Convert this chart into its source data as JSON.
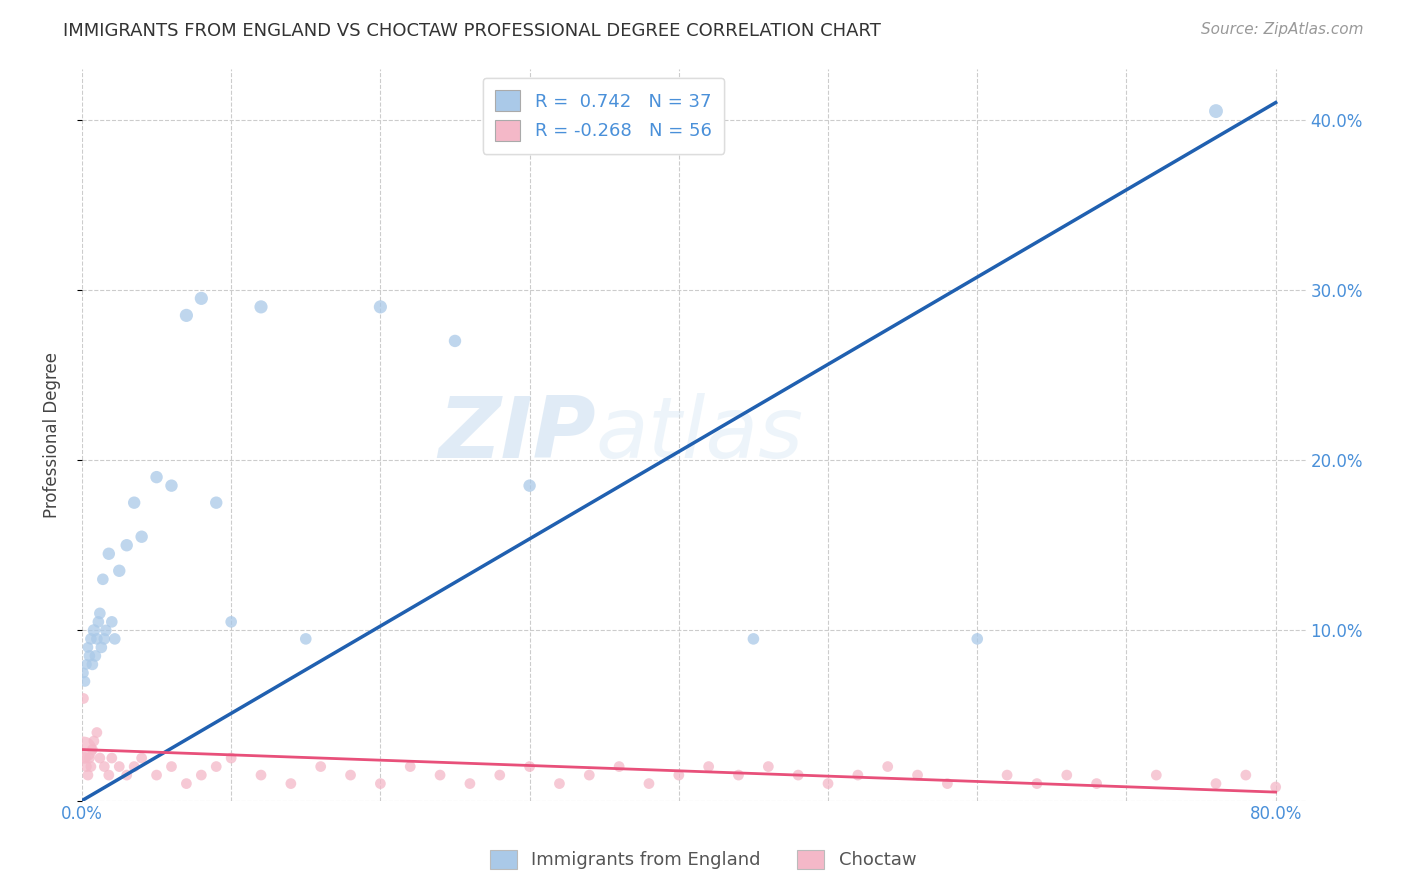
{
  "title": "IMMIGRANTS FROM ENGLAND VS CHOCTAW PROFESSIONAL DEGREE CORRELATION CHART",
  "source": "Source: ZipAtlas.com",
  "ylabel": "Professional Degree",
  "legend_blue_r": "0.742",
  "legend_blue_n": "37",
  "legend_pink_r": "-0.268",
  "legend_pink_n": "56",
  "legend_label_blue": "Immigrants from England",
  "legend_label_pink": "Choctaw",
  "blue_color": "#aac9e8",
  "pink_color": "#f4b8c8",
  "blue_line_color": "#2060b0",
  "pink_line_color": "#e8507a",
  "watermark_zip": "ZIP",
  "watermark_atlas": "atlas",
  "blue_scatter_x": [
    0.001,
    0.002,
    0.003,
    0.004,
    0.005,
    0.006,
    0.007,
    0.008,
    0.009,
    0.01,
    0.011,
    0.012,
    0.013,
    0.014,
    0.015,
    0.016,
    0.018,
    0.02,
    0.022,
    0.025,
    0.03,
    0.035,
    0.04,
    0.05,
    0.06,
    0.07,
    0.08,
    0.09,
    0.1,
    0.12,
    0.15,
    0.2,
    0.25,
    0.3,
    0.45,
    0.6,
    0.76
  ],
  "blue_scatter_y": [
    0.075,
    0.07,
    0.08,
    0.09,
    0.085,
    0.095,
    0.08,
    0.1,
    0.085,
    0.095,
    0.105,
    0.11,
    0.09,
    0.13,
    0.095,
    0.1,
    0.145,
    0.105,
    0.095,
    0.135,
    0.15,
    0.175,
    0.155,
    0.19,
    0.185,
    0.285,
    0.295,
    0.175,
    0.105,
    0.29,
    0.095,
    0.29,
    0.27,
    0.185,
    0.095,
    0.095,
    0.405
  ],
  "blue_scatter_size": [
    60,
    60,
    60,
    60,
    70,
    70,
    70,
    80,
    70,
    70,
    70,
    70,
    70,
    70,
    70,
    70,
    80,
    70,
    70,
    80,
    80,
    80,
    80,
    80,
    80,
    90,
    90,
    80,
    70,
    90,
    70,
    90,
    80,
    80,
    70,
    70,
    100
  ],
  "pink_scatter_x": [
    0.001,
    0.002,
    0.003,
    0.004,
    0.005,
    0.006,
    0.007,
    0.008,
    0.01,
    0.012,
    0.015,
    0.018,
    0.02,
    0.025,
    0.03,
    0.035,
    0.04,
    0.05,
    0.06,
    0.07,
    0.08,
    0.09,
    0.1,
    0.12,
    0.14,
    0.16,
    0.18,
    0.2,
    0.22,
    0.24,
    0.26,
    0.28,
    0.3,
    0.32,
    0.34,
    0.36,
    0.38,
    0.4,
    0.42,
    0.44,
    0.46,
    0.48,
    0.5,
    0.52,
    0.54,
    0.56,
    0.58,
    0.62,
    0.64,
    0.66,
    0.68,
    0.72,
    0.76,
    0.78,
    0.8,
    0.001
  ],
  "pink_scatter_y": [
    0.03,
    0.025,
    0.02,
    0.015,
    0.025,
    0.02,
    0.03,
    0.035,
    0.04,
    0.025,
    0.02,
    0.015,
    0.025,
    0.02,
    0.015,
    0.02,
    0.025,
    0.015,
    0.02,
    0.01,
    0.015,
    0.02,
    0.025,
    0.015,
    0.01,
    0.02,
    0.015,
    0.01,
    0.02,
    0.015,
    0.01,
    0.015,
    0.02,
    0.01,
    0.015,
    0.02,
    0.01,
    0.015,
    0.02,
    0.015,
    0.02,
    0.015,
    0.01,
    0.015,
    0.02,
    0.015,
    0.01,
    0.015,
    0.01,
    0.015,
    0.01,
    0.015,
    0.01,
    0.015,
    0.008,
    0.06
  ],
  "pink_scatter_size": [
    350,
    70,
    60,
    60,
    60,
    60,
    60,
    60,
    60,
    60,
    60,
    60,
    60,
    60,
    60,
    60,
    60,
    60,
    60,
    60,
    60,
    60,
    60,
    60,
    60,
    60,
    60,
    60,
    60,
    60,
    60,
    60,
    60,
    60,
    60,
    60,
    60,
    60,
    60,
    60,
    60,
    60,
    60,
    60,
    60,
    60,
    60,
    60,
    60,
    60,
    60,
    60,
    60,
    60,
    60,
    60
  ],
  "blue_line_x": [
    0.0,
    0.8
  ],
  "blue_line_y": [
    0.0,
    0.41
  ],
  "pink_line_x": [
    0.0,
    0.8
  ],
  "pink_line_y": [
    0.03,
    0.005
  ],
  "xlim": [
    0.0,
    0.82
  ],
  "ylim": [
    0.0,
    0.43
  ],
  "yticks": [
    0.0,
    0.1,
    0.2,
    0.3,
    0.4
  ],
  "ytick_labels_right": [
    "",
    "10.0%",
    "20.0%",
    "30.0%",
    "40.0%"
  ],
  "xticks": [
    0.0,
    0.1,
    0.2,
    0.3,
    0.4,
    0.5,
    0.6,
    0.7,
    0.8
  ],
  "xtick_labels": [
    "0.0%",
    "",
    "",
    "",
    "",
    "",
    "",
    "",
    "80.0%"
  ],
  "title_fontsize": 13,
  "source_fontsize": 11,
  "tick_fontsize": 12,
  "ylabel_fontsize": 12
}
